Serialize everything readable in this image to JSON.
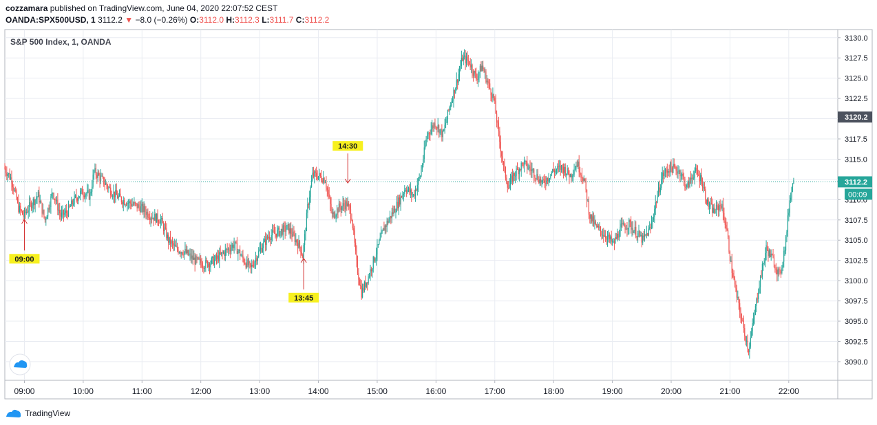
{
  "header": {
    "author": "cozzamara",
    "published": "published on TradingView.com, June 04, 2020 22:07:52 CEST",
    "symbol": "OANDA:SPX500USD, 1",
    "last": "3112.2",
    "change": "−8.0 (−0.26%)",
    "o_label": "O:",
    "o_value": "3112.0",
    "h_label": "H:",
    "h_value": "3112.3",
    "l_label": "L:",
    "l_value": "3111.7",
    "c_label": "C:",
    "c_value": "3112.2"
  },
  "footer": {
    "brand": "TradingView"
  },
  "colors": {
    "up": "#26a69a",
    "down": "#ef5350",
    "grid": "#e9ecf2",
    "last_line": "#26a69a",
    "annotation_bg": "#f7f01f",
    "annotation_arrow": "#d32f2f"
  },
  "chart_data": {
    "type": "candlestick",
    "title": "S&P 500 Index, 1, OANDA",
    "x_axis": {
      "range": [
        "08:40",
        "22:50"
      ],
      "ticks": [
        "09:00",
        "10:00",
        "11:00",
        "12:00",
        "13:00",
        "14:00",
        "15:00",
        "16:00",
        "17:00",
        "18:00",
        "19:00",
        "20:00",
        "21:00",
        "22:00"
      ]
    },
    "y_axis": {
      "range": [
        3087.7,
        3131.0
      ],
      "ticks": [
        "3090.0",
        "3092.5",
        "3095.0",
        "3097.5",
        "3100.0",
        "3102.5",
        "3105.0",
        "3107.5",
        "3110.0",
        "3112.5",
        "3115.0",
        "3117.5",
        "3120.0",
        "3122.5",
        "3125.0",
        "3127.5",
        "3130.0"
      ]
    },
    "grid": true,
    "price_path": [
      [
        "08:40",
        3114.0
      ],
      [
        "08:48",
        3112.5
      ],
      [
        "08:55",
        3109.0
      ],
      [
        "09:00",
        3108.0
      ],
      [
        "09:08",
        3109.5
      ],
      [
        "09:15",
        3110.5
      ],
      [
        "09:22",
        3107.5
      ],
      [
        "09:30",
        3111.0
      ],
      [
        "09:38",
        3108.0
      ],
      [
        "09:45",
        3108.5
      ],
      [
        "09:52",
        3110.0
      ],
      [
        "10:00",
        3111.0
      ],
      [
        "10:08",
        3110.5
      ],
      [
        "10:12",
        3113.5
      ],
      [
        "10:20",
        3112.5
      ],
      [
        "10:30",
        3111.0
      ],
      [
        "10:40",
        3110.0
      ],
      [
        "10:50",
        3109.5
      ],
      [
        "11:00",
        3109.0
      ],
      [
        "11:10",
        3108.0
      ],
      [
        "11:20",
        3107.5
      ],
      [
        "11:28",
        3105.0
      ],
      [
        "11:35",
        3104.0
      ],
      [
        "11:45",
        3103.5
      ],
      [
        "11:55",
        3102.5
      ],
      [
        "12:05",
        3102.0
      ],
      [
        "12:15",
        3102.5
      ],
      [
        "12:25",
        3103.5
      ],
      [
        "12:35",
        3104.5
      ],
      [
        "12:45",
        3102.5
      ],
      [
        "12:52",
        3101.5
      ],
      [
        "13:00",
        3103.5
      ],
      [
        "13:10",
        3105.5
      ],
      [
        "13:20",
        3106.0
      ],
      [
        "13:30",
        3106.5
      ],
      [
        "13:38",
        3105.0
      ],
      [
        "13:43",
        3104.0
      ],
      [
        "13:45",
        3103.0
      ],
      [
        "13:50",
        3109.0
      ],
      [
        "13:55",
        3113.0
      ],
      [
        "14:00",
        3113.0
      ],
      [
        "14:08",
        3112.5
      ],
      [
        "14:15",
        3108.0
      ],
      [
        "14:22",
        3109.0
      ],
      [
        "14:30",
        3109.5
      ],
      [
        "14:35",
        3108.0
      ],
      [
        "14:40",
        3102.0
      ],
      [
        "14:45",
        3098.5
      ],
      [
        "14:52",
        3100.5
      ],
      [
        "15:00",
        3103.5
      ],
      [
        "15:08",
        3106.5
      ],
      [
        "15:15",
        3108.0
      ],
      [
        "15:22",
        3109.5
      ],
      [
        "15:30",
        3111.5
      ],
      [
        "15:38",
        3110.5
      ],
      [
        "15:45",
        3113.0
      ],
      [
        "15:52",
        3118.0
      ],
      [
        "16:00",
        3119.5
      ],
      [
        "16:08",
        3118.0
      ],
      [
        "16:15",
        3121.5
      ],
      [
        "16:22",
        3124.5
      ],
      [
        "16:28",
        3127.5
      ],
      [
        "16:35",
        3127.0
      ],
      [
        "16:42",
        3125.0
      ],
      [
        "16:48",
        3126.5
      ],
      [
        "16:55",
        3124.0
      ],
      [
        "17:00",
        3122.5
      ],
      [
        "17:05",
        3118.0
      ],
      [
        "17:10",
        3114.0
      ],
      [
        "17:15",
        3111.5
      ],
      [
        "17:20",
        3113.0
      ],
      [
        "17:30",
        3114.5
      ],
      [
        "17:40",
        3113.5
      ],
      [
        "17:50",
        3112.0
      ],
      [
        "18:00",
        3113.5
      ],
      [
        "18:10",
        3114.0
      ],
      [
        "18:18",
        3113.0
      ],
      [
        "18:25",
        3114.5
      ],
      [
        "18:32",
        3112.5
      ],
      [
        "18:38",
        3108.0
      ],
      [
        "18:45",
        3106.5
      ],
      [
        "18:55",
        3105.5
      ],
      [
        "19:02",
        3104.5
      ],
      [
        "19:10",
        3106.5
      ],
      [
        "19:18",
        3107.0
      ],
      [
        "19:25",
        3106.0
      ],
      [
        "19:32",
        3105.0
      ],
      [
        "19:40",
        3106.5
      ],
      [
        "19:45",
        3109.5
      ],
      [
        "19:52",
        3113.0
      ],
      [
        "20:00",
        3114.0
      ],
      [
        "20:10",
        3113.5
      ],
      [
        "20:17",
        3111.5
      ],
      [
        "20:25",
        3113.5
      ],
      [
        "20:32",
        3112.5
      ],
      [
        "20:38",
        3109.5
      ],
      [
        "20:45",
        3108.5
      ],
      [
        "20:52",
        3109.5
      ],
      [
        "20:58",
        3106.0
      ],
      [
        "21:02",
        3102.0
      ],
      [
        "21:08",
        3098.0
      ],
      [
        "21:15",
        3094.0
      ],
      [
        "21:20",
        3091.5
      ],
      [
        "21:25",
        3095.0
      ],
      [
        "21:30",
        3099.0
      ],
      [
        "21:38",
        3104.0
      ],
      [
        "21:45",
        3102.5
      ],
      [
        "21:52",
        3100.5
      ],
      [
        "21:58",
        3105.0
      ],
      [
        "22:02",
        3110.0
      ],
      [
        "22:05",
        3112.2
      ]
    ],
    "last_price": "3112.2",
    "price_labels": [
      {
        "value": "3120.2",
        "style": "dark"
      },
      {
        "value": "3112.2",
        "style": "green"
      }
    ],
    "countdown": "00:09",
    "annotations": [
      {
        "label": "09:00",
        "time": "09:00",
        "price": 3107.8,
        "position": "below"
      },
      {
        "label": "13:45",
        "time": "13:45",
        "price": 3103.0,
        "position": "below"
      },
      {
        "label": "14:30",
        "time": "14:30",
        "price": 3111.8,
        "position": "above"
      }
    ]
  }
}
